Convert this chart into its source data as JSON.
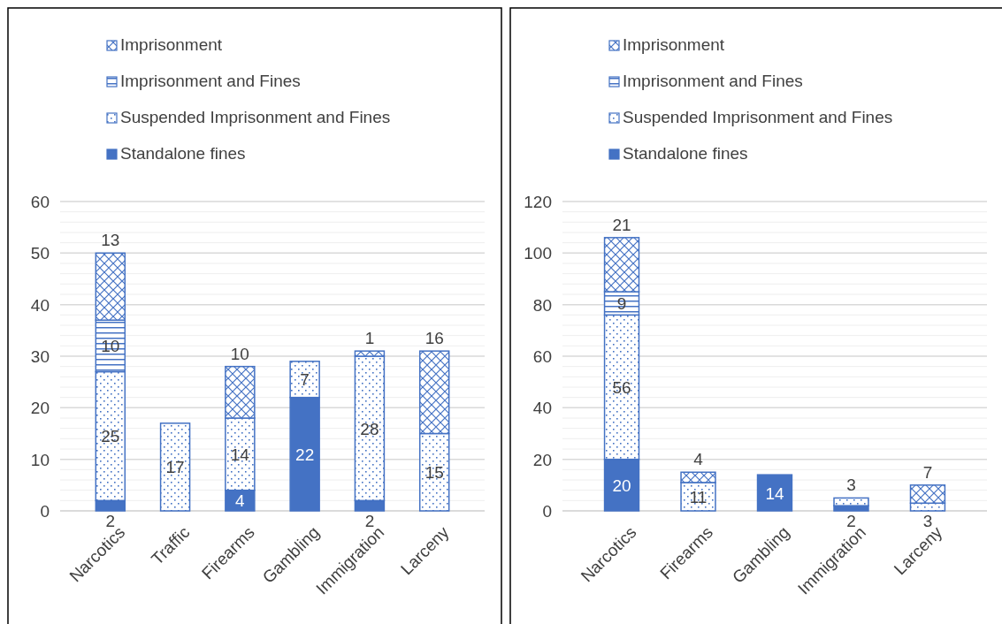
{
  "chart_data": [
    {
      "type": "bar",
      "stacked": true,
      "categories": [
        "Narcotics",
        "Traffic",
        "Firearms",
        "Gambling",
        "Immigration",
        "Larceny"
      ],
      "series": [
        {
          "name": "Standalone fines",
          "color": "#4472c4",
          "values": [
            2,
            null,
            4,
            22,
            2,
            null
          ]
        },
        {
          "name": "Suspended Imprisonment and Fines",
          "color": "#4472c4",
          "values": [
            25,
            17,
            14,
            7,
            28,
            15
          ]
        },
        {
          "name": "Imprisonment and Fines",
          "color": "#4472c4",
          "values": [
            10,
            null,
            null,
            null,
            null,
            null
          ]
        },
        {
          "name": "Imprisonment",
          "color": "#4472c4",
          "values": [
            13,
            null,
            10,
            null,
            1,
            16
          ]
        }
      ],
      "ylim": [
        0,
        60
      ],
      "yticks": [
        0,
        {
          "value": 2,
          "label": null
        },
        {
          "value": 4,
          "label": null
        },
        {
          "value": 6,
          "label": null
        },
        {
          "value": 8,
          "label": null
        },
        10,
        {
          "value": 12,
          "label": null
        },
        {
          "value": 14,
          "label": null
        },
        {
          "value": 16,
          "label": null
        },
        {
          "value": 18,
          "label": null
        },
        20,
        {
          "value": 22,
          "label": null
        },
        {
          "value": 24,
          "label": null
        },
        {
          "value": 26,
          "label": null
        },
        {
          "value": 28,
          "label": null
        },
        30,
        {
          "value": 32,
          "label": null
        },
        {
          "value": 34,
          "label": null
        },
        {
          "value": 36,
          "label": null
        },
        {
          "value": 38,
          "label": null
        },
        40,
        {
          "value": 42,
          "label": null
        },
        {
          "value": 44,
          "label": null
        },
        {
          "value": 46,
          "label": null
        },
        {
          "value": 48,
          "label": null
        },
        50,
        {
          "value": 52,
          "label": null
        },
        {
          "value": 54,
          "label": null
        },
        {
          "value": 56,
          "label": null
        },
        {
          "value": 58,
          "label": null
        },
        60
      ],
      "grid": "y",
      "legend": "top",
      "data_labels": true
    },
    {
      "type": "bar",
      "stacked": true,
      "categories": [
        "Narcotics",
        "Firearms",
        "Gambling",
        "Immigration",
        "Larceny"
      ],
      "series": [
        {
          "name": "Standalone fines",
          "color": "#4472c4",
          "values": [
            20,
            null,
            14,
            2,
            null
          ]
        },
        {
          "name": "Suspended Imprisonment and Fines",
          "color": "#4472c4",
          "values": [
            56,
            11,
            null,
            3,
            3
          ]
        },
        {
          "name": "Imprisonment and Fines",
          "color": "#4472c4",
          "values": [
            9,
            null,
            null,
            null,
            null
          ]
        },
        {
          "name": "Imprisonment",
          "color": "#4472c4",
          "values": [
            21,
            4,
            null,
            null,
            7
          ]
        }
      ],
      "ylim": [
        0,
        120
      ],
      "yticks": [
        0,
        {
          "value": 4,
          "label": null
        },
        {
          "value": 8,
          "label": null
        },
        {
          "value": 12,
          "label": null
        },
        {
          "value": 16,
          "label": null
        },
        20,
        {
          "value": 24,
          "label": null
        },
        {
          "value": 28,
          "label": null
        },
        {
          "value": 32,
          "label": null
        },
        {
          "value": 36,
          "label": null
        },
        40,
        {
          "value": 44,
          "label": null
        },
        {
          "value": 48,
          "label": null
        },
        {
          "value": 52,
          "label": null
        },
        {
          "value": 56,
          "label": null
        },
        60,
        {
          "value": 64,
          "label": null
        },
        {
          "value": 68,
          "label": null
        },
        {
          "value": 72,
          "label": null
        },
        {
          "value": 76,
          "label": null
        },
        80,
        {
          "value": 84,
          "label": null
        },
        {
          "value": 88,
          "label": null
        },
        {
          "value": 92,
          "label": null
        },
        {
          "value": 96,
          "label": null
        },
        100,
        {
          "value": 104,
          "label": null
        },
        {
          "value": 108,
          "label": null
        },
        {
          "value": 112,
          "label": null
        },
        {
          "value": 116,
          "label": null
        },
        120
      ],
      "grid": "y",
      "legend": "top",
      "data_labels": true
    }
  ]
}
